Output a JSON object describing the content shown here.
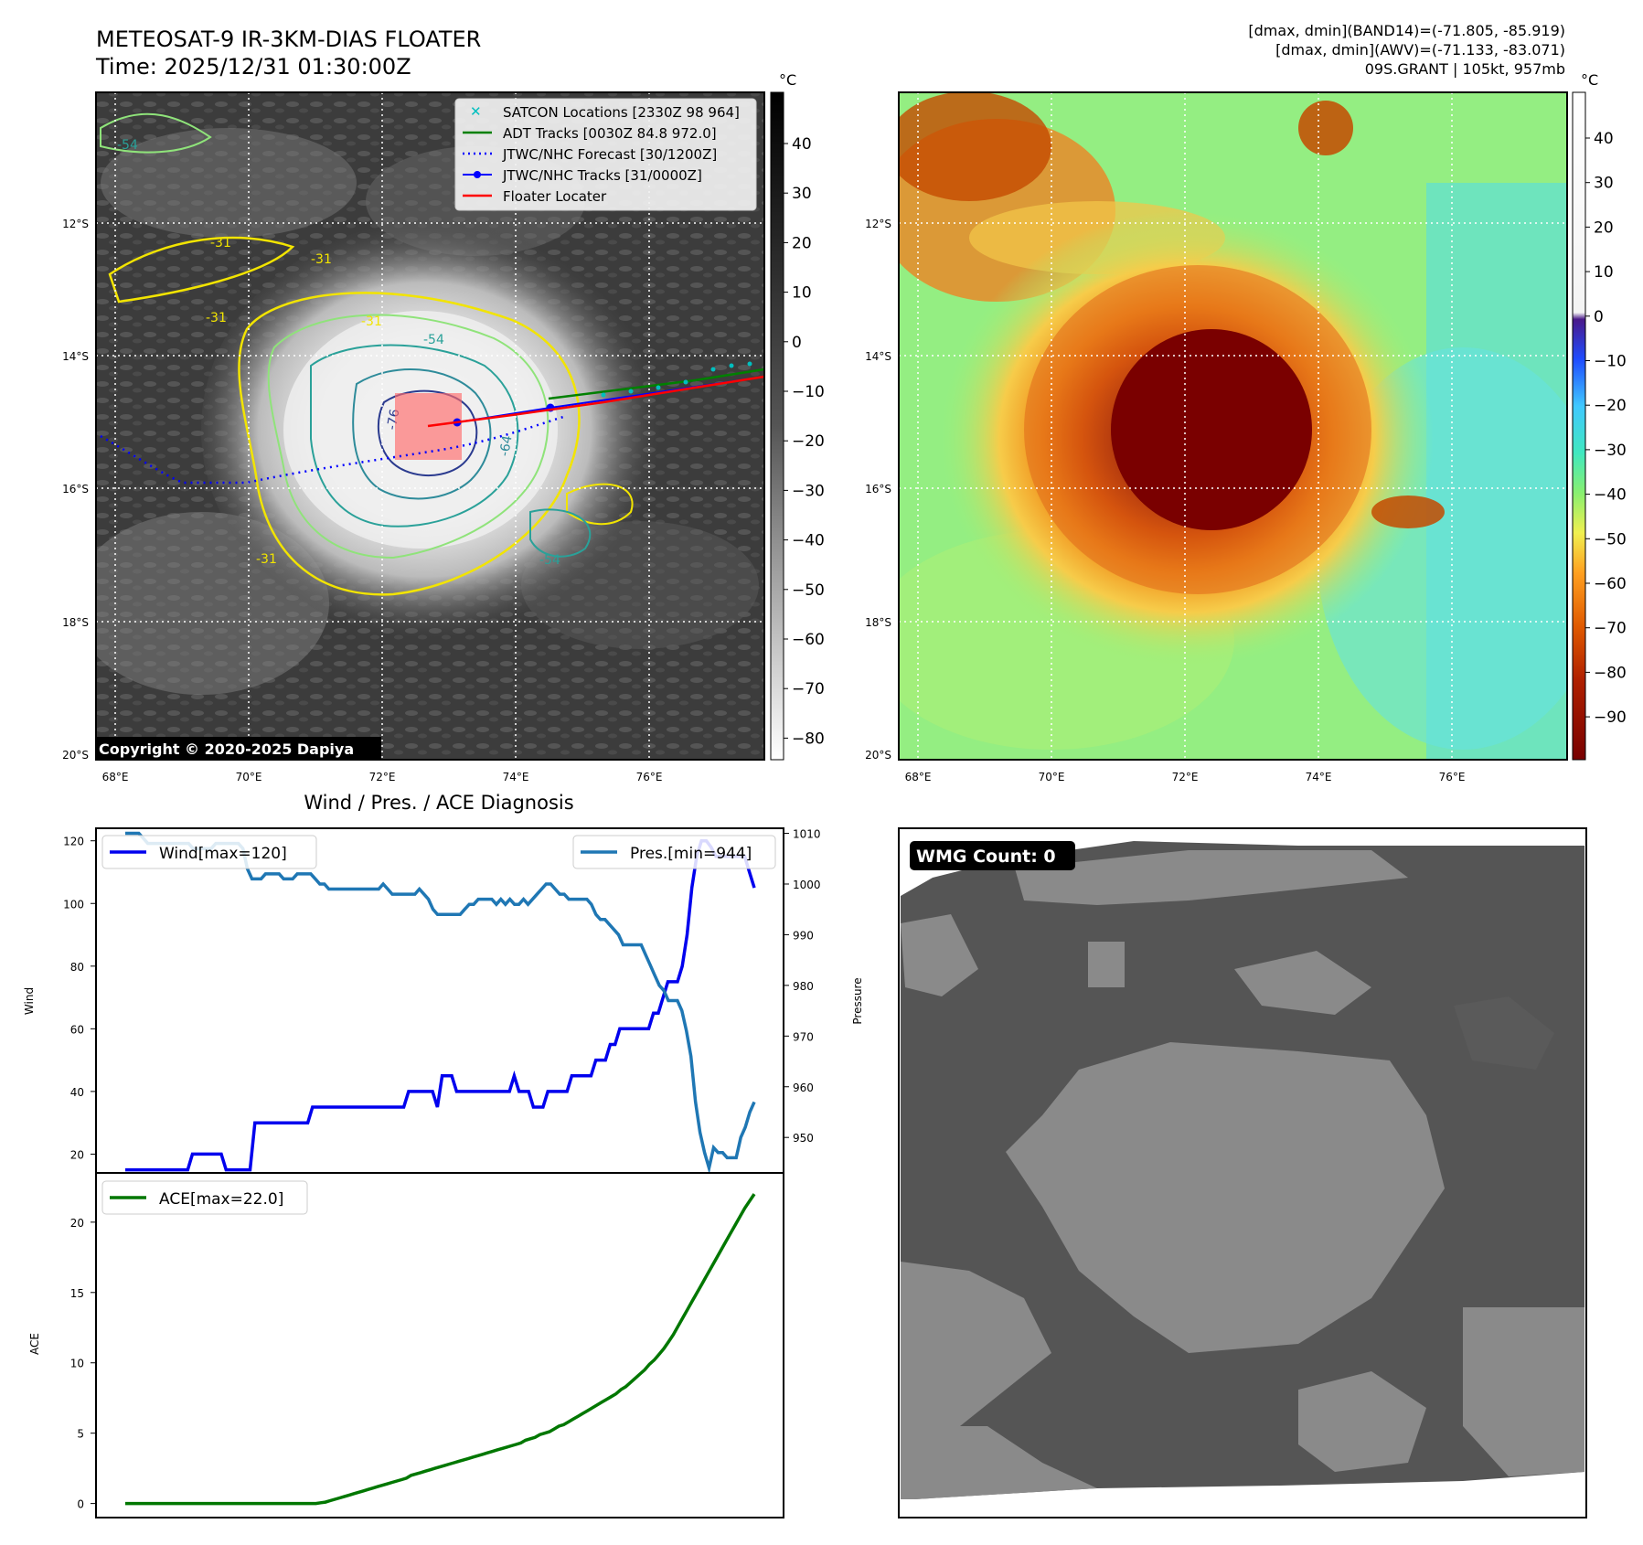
{
  "header": {
    "title": "METEOSAT-9 IR-3KM-DIAS FLOATER",
    "time": "Time: 2025/12/31 01:30:00Z",
    "band14_range": "[dmax, dmin](BAND14)=(-71.805, -85.919)",
    "awv_range": "[dmax, dmin](AWV)=(-71.133, -83.071)",
    "storm_info": "09S.GRANT | 105kt, 957mb"
  },
  "map": {
    "lat_labels": [
      "12°S",
      "14°S",
      "16°S",
      "18°S",
      "20°S"
    ],
    "lon_labels": [
      "68°E",
      "70°E",
      "72°E",
      "74°E",
      "76°E"
    ],
    "copyright": "Copyright © 2020-2025 Dapiya",
    "contour_labels": [
      "-54",
      "-31",
      "-31",
      "-31",
      "-31",
      "-54",
      "-76",
      "-64",
      "-54",
      "-31"
    ]
  },
  "legend": {
    "satcon": "SATCON Locations [2330Z 98 964]",
    "adt": "ADT Tracks [0030Z 84.8 972.0]",
    "jtwc_forecast": "JTWC/NHC Forecast [30/1200Z]",
    "jtwc_tracks": "JTWC/NHC Tracks [31/0000Z]",
    "floater": "Floater Locater"
  },
  "colorbar_ir": {
    "unit": "°C",
    "ticks": [
      "40",
      "30",
      "20",
      "10",
      "0",
      "−10",
      "−20",
      "−30",
      "−40",
      "−50",
      "−60",
      "−70",
      "−80"
    ]
  },
  "colorbar_awv": {
    "unit": "°C",
    "ticks": [
      "40",
      "30",
      "20",
      "10",
      "0",
      "−10",
      "−20",
      "−30",
      "−40",
      "−50",
      "−60",
      "−70",
      "−80",
      "−90"
    ]
  },
  "wmg": {
    "badge": "WMG Count: 0"
  },
  "colors": {
    "wind": "#0000ee",
    "pressure": "#1f77b4",
    "ace": "#007700",
    "jtwc": "#0000ff",
    "floater": "#ff0000",
    "adt": "#008000",
    "satcon": "#00bfbf"
  },
  "chart_data": [
    {
      "type": "line",
      "title": "Wind / Pres. / ACE Diagnosis",
      "ylabel": "Wind",
      "y2label": "Pressure",
      "ylim": [
        14,
        124
      ],
      "y2lim": [
        943,
        1011
      ],
      "yticks": [
        20,
        40,
        60,
        80,
        100,
        120
      ],
      "y2ticks": [
        950,
        960,
        970,
        980,
        990,
        1000,
        1010
      ],
      "series": [
        {
          "name": "Wind[max=120]",
          "axis": "left",
          "values": [
            15,
            15,
            15,
            15,
            15,
            15,
            15,
            15,
            15,
            15,
            15,
            15,
            15,
            15,
            20,
            20,
            20,
            20,
            20,
            20,
            20,
            15,
            15,
            15,
            15,
            15,
            15,
            30,
            30,
            30,
            30,
            30,
            30,
            30,
            30,
            30,
            30,
            30,
            30,
            35,
            35,
            35,
            35,
            35,
            35,
            35,
            35,
            35,
            35,
            35,
            35,
            35,
            35,
            35,
            35,
            35,
            35,
            35,
            35,
            40,
            40,
            40,
            40,
            40,
            40,
            35,
            45,
            45,
            45,
            40,
            40,
            40,
            40,
            40,
            40,
            40,
            40,
            40,
            40,
            40,
            40,
            45,
            40,
            40,
            40,
            35,
            35,
            35,
            40,
            40,
            40,
            40,
            40,
            45,
            45,
            45,
            45,
            45,
            50,
            50,
            50,
            55,
            55,
            60,
            60,
            60,
            60,
            60,
            60,
            60,
            65,
            65,
            70,
            75,
            75,
            75,
            80,
            90,
            105,
            115,
            120,
            120,
            118,
            115,
            115,
            115,
            115,
            115,
            115,
            115,
            110,
            105
          ]
        },
        {
          "name": "Pres.[min=944]",
          "axis": "right",
          "values": [
            1010,
            1010,
            1010,
            1010,
            1009,
            1008,
            1008,
            1008,
            1008,
            1008,
            1008,
            1008,
            1008,
            1008,
            1008,
            1007,
            1007,
            1007,
            1007,
            1007,
            1008,
            1008,
            1008,
            1008,
            1008,
            1008,
            1007,
            1003,
            1001,
            1001,
            1001,
            1002,
            1002,
            1002,
            1002,
            1001,
            1001,
            1001,
            1002,
            1002,
            1002,
            1002,
            1001,
            1000,
            1000,
            999,
            999,
            999,
            999,
            999,
            999,
            999,
            999,
            999,
            999,
            999,
            999,
            1000,
            999,
            998,
            998,
            998,
            998,
            998,
            998,
            999,
            998,
            997,
            995,
            994,
            994,
            994,
            994,
            994,
            994,
            995,
            996,
            996,
            997,
            997,
            997,
            997,
            996,
            997,
            996,
            997,
            996,
            996,
            997,
            996,
            997,
            998,
            999,
            1000,
            1000,
            999,
            998,
            998,
            997,
            997,
            997,
            997,
            997,
            996,
            994,
            993,
            993,
            992,
            991,
            990,
            988,
            988,
            988,
            988,
            988,
            986,
            984,
            982,
            980,
            979,
            977,
            977,
            977,
            975,
            971,
            966,
            957,
            951,
            947,
            944,
            948,
            947,
            947,
            946,
            946,
            946,
            950,
            952,
            955,
            957
          ]
        }
      ],
      "x_count": 140
    },
    {
      "type": "line",
      "ylabel": "ACE",
      "ylim": [
        -1,
        23.5
      ],
      "yticks": [
        0,
        5,
        10,
        15,
        20
      ],
      "series": [
        {
          "name": "ACE[max=22.0]",
          "values": [
            0,
            0,
            0,
            0,
            0,
            0,
            0,
            0,
            0,
            0,
            0,
            0,
            0,
            0,
            0,
            0,
            0,
            0,
            0,
            0,
            0,
            0,
            0,
            0,
            0,
            0,
            0,
            0,
            0,
            0,
            0,
            0,
            0,
            0,
            0,
            0,
            0,
            0,
            0,
            0,
            0,
            0.05,
            0.1,
            0.2,
            0.3,
            0.4,
            0.5,
            0.6,
            0.7,
            0.8,
            0.9,
            1.0,
            1.1,
            1.2,
            1.3,
            1.4,
            1.5,
            1.6,
            1.7,
            1.8,
            2.0,
            2.1,
            2.2,
            2.3,
            2.4,
            2.5,
            2.6,
            2.7,
            2.8,
            2.9,
            3.0,
            3.1,
            3.2,
            3.3,
            3.4,
            3.5,
            3.6,
            3.7,
            3.8,
            3.9,
            4.0,
            4.1,
            4.2,
            4.3,
            4.5,
            4.6,
            4.7,
            4.9,
            5.0,
            5.1,
            5.3,
            5.5,
            5.6,
            5.8,
            6.0,
            6.2,
            6.4,
            6.6,
            6.8,
            7.0,
            7.2,
            7.4,
            7.6,
            7.8,
            8.1,
            8.3,
            8.6,
            8.9,
            9.2,
            9.5,
            9.9,
            10.2,
            10.6,
            11.0,
            11.5,
            12.0,
            12.6,
            13.2,
            13.8,
            14.4,
            15.0,
            15.6,
            16.2,
            16.8,
            17.4,
            18.0,
            18.6,
            19.2,
            19.8,
            20.4,
            21.0,
            21.5,
            22.0
          ]
        }
      ]
    }
  ]
}
